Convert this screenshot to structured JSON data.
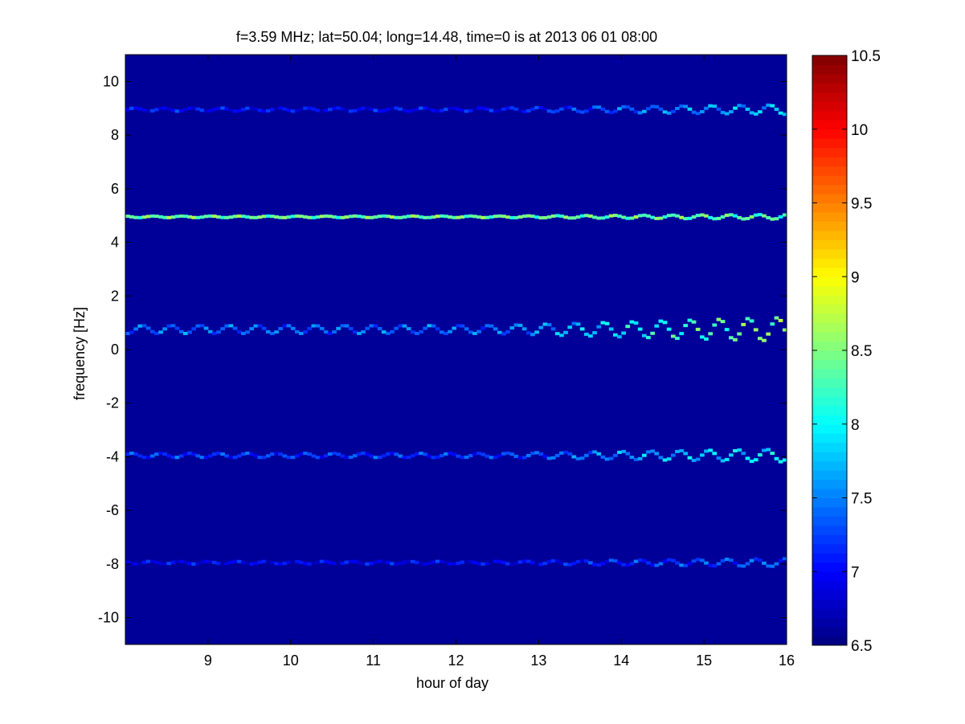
{
  "chart_data": {
    "type": "heatmap",
    "title": "f=3.59 MHz;  lat=50.04; long=14.48, time=0 is at 2013 06 01 08:00",
    "xlabel": "hour of day",
    "ylabel": "frequency [Hz]",
    "xlim": [
      8,
      16
    ],
    "ylim": [
      -11,
      11
    ],
    "xticks": [
      9,
      10,
      11,
      12,
      13,
      14,
      15,
      16
    ],
    "yticks": [
      -10,
      -8,
      -6,
      -4,
      -2,
      0,
      2,
      4,
      6,
      8,
      10
    ],
    "colorbar": {
      "colormap": "jet",
      "clim": [
        6.5,
        10.5
      ],
      "ticks": [
        6.5,
        7,
        7.5,
        8,
        8.5,
        9,
        9.5,
        10,
        10.5
      ],
      "position": "right"
    },
    "background_value": 6.5,
    "spectral_lines": [
      {
        "frequency": 8.95,
        "intensity_early": 7.0,
        "intensity_late": 7.8,
        "wobble": 0.06
      },
      {
        "frequency": 4.95,
        "intensity_early": 8.4,
        "intensity_late": 8.3,
        "wobble": 0.03
      },
      {
        "frequency": 0.75,
        "intensity_early": 7.4,
        "intensity_late": 8.6,
        "wobble": 0.15
      },
      {
        "frequency": -3.95,
        "intensity_early": 7.2,
        "intensity_late": 8.0,
        "wobble": 0.08
      },
      {
        "frequency": -7.95,
        "intensity_early": 6.95,
        "intensity_late": 7.4,
        "wobble": 0.05
      }
    ],
    "grid": false
  }
}
